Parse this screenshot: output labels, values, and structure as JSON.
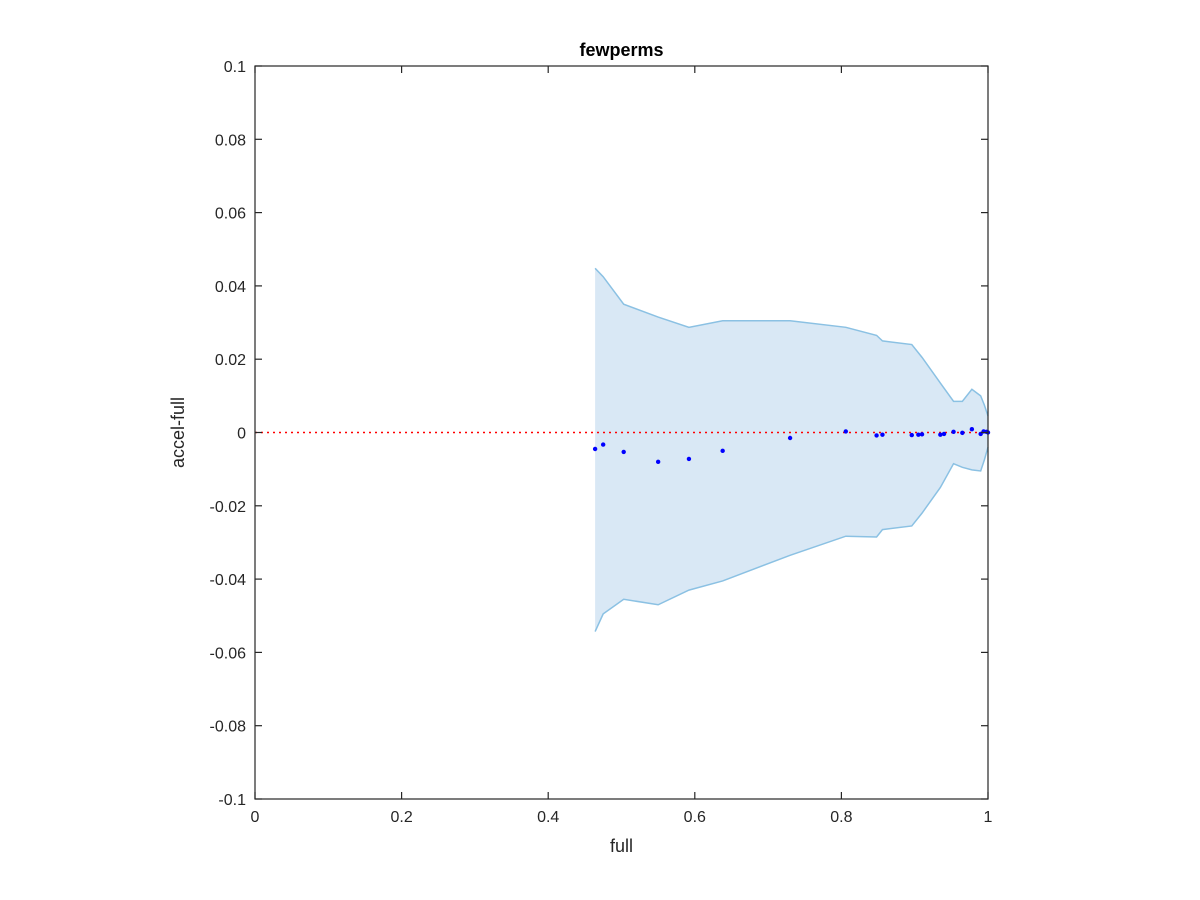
{
  "chart_data": {
    "type": "scatter",
    "title": "fewperms",
    "xlabel": "full",
    "ylabel": "accel-full",
    "xlim": [
      0,
      1
    ],
    "ylim": [
      -0.1,
      0.1
    ],
    "x_ticks": [
      {
        "value": 0,
        "label": "0"
      },
      {
        "value": 0.2,
        "label": "0.2"
      },
      {
        "value": 0.4,
        "label": "0.4"
      },
      {
        "value": 0.6,
        "label": "0.6"
      },
      {
        "value": 0.8,
        "label": "0.8"
      },
      {
        "value": 1,
        "label": "1"
      }
    ],
    "y_ticks": [
      {
        "value": -0.1,
        "label": "-0.1"
      },
      {
        "value": -0.08,
        "label": "-0.08"
      },
      {
        "value": -0.06,
        "label": "-0.06"
      },
      {
        "value": -0.04,
        "label": "-0.04"
      },
      {
        "value": -0.02,
        "label": "-0.02"
      },
      {
        "value": 0,
        "label": "0"
      },
      {
        "value": 0.02,
        "label": "0.02"
      },
      {
        "value": 0.04,
        "label": "0.04"
      },
      {
        "value": 0.06,
        "label": "0.06"
      },
      {
        "value": 0.08,
        "label": "0.08"
      },
      {
        "value": 0.1,
        "label": "0.1"
      }
    ],
    "grid": false,
    "reference_line": {
      "y": 0,
      "color": "#ff0000",
      "style": "dotted"
    },
    "band": {
      "fill_color": "#d9e8f5",
      "edge_color": "#8bc1e3",
      "upper": [
        [
          0.464,
          0.0448
        ],
        [
          0.475,
          0.0425
        ],
        [
          0.503,
          0.035
        ],
        [
          0.55,
          0.0315
        ],
        [
          0.592,
          0.0287
        ],
        [
          0.638,
          0.0305
        ],
        [
          0.73,
          0.0305
        ],
        [
          0.806,
          0.0287
        ],
        [
          0.848,
          0.0265
        ],
        [
          0.856,
          0.025
        ],
        [
          0.896,
          0.024
        ],
        [
          0.91,
          0.0205
        ],
        [
          0.935,
          0.0135
        ],
        [
          0.953,
          0.0085
        ],
        [
          0.965,
          0.0085
        ],
        [
          0.978,
          0.0118
        ],
        [
          0.99,
          0.01
        ],
        [
          0.995,
          0.0075
        ],
        [
          1.0,
          0.0045
        ]
      ],
      "lower": [
        [
          0.464,
          -0.0543
        ],
        [
          0.475,
          -0.0495
        ],
        [
          0.503,
          -0.0455
        ],
        [
          0.55,
          -0.047
        ],
        [
          0.592,
          -0.043
        ],
        [
          0.638,
          -0.0405
        ],
        [
          0.73,
          -0.0335
        ],
        [
          0.806,
          -0.0283
        ],
        [
          0.848,
          -0.0285
        ],
        [
          0.856,
          -0.0265
        ],
        [
          0.896,
          -0.0255
        ],
        [
          0.91,
          -0.022
        ],
        [
          0.935,
          -0.015
        ],
        [
          0.953,
          -0.0085
        ],
        [
          0.965,
          -0.0095
        ],
        [
          0.978,
          -0.0102
        ],
        [
          0.99,
          -0.0105
        ],
        [
          0.995,
          -0.0075
        ],
        [
          1.0,
          -0.004
        ]
      ]
    },
    "series": [
      {
        "color": "#0000ff",
        "points": [
          [
            0.464,
            -0.0045
          ],
          [
            0.475,
            -0.0033
          ],
          [
            0.503,
            -0.0053
          ],
          [
            0.55,
            -0.008
          ],
          [
            0.592,
            -0.0072
          ],
          [
            0.638,
            -0.005
          ],
          [
            0.73,
            -0.0015
          ],
          [
            0.806,
            0.0003
          ],
          [
            0.848,
            -0.0008
          ],
          [
            0.856,
            -0.0006
          ],
          [
            0.896,
            -0.0007
          ],
          [
            0.905,
            -0.0006
          ],
          [
            0.91,
            -0.0005
          ],
          [
            0.935,
            -0.0006
          ],
          [
            0.94,
            -0.0004
          ],
          [
            0.953,
            0.0002
          ],
          [
            0.965,
            -0.0001
          ],
          [
            0.978,
            0.0009
          ],
          [
            0.99,
            -0.0004
          ],
          [
            0.994,
            0.0003
          ],
          [
            0.998,
            0.0002
          ],
          [
            1.0,
            0.0
          ]
        ]
      }
    ]
  }
}
